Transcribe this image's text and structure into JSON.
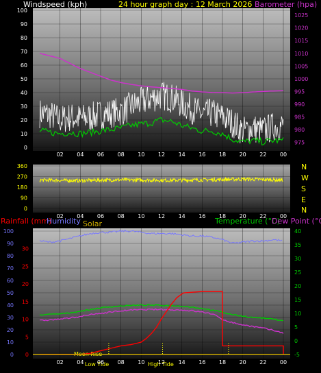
{
  "header": {
    "windspeed_label": "Windspeed (kph)",
    "title": "24 hour graph day : 12 March 2026",
    "barometer_label": "Barometer (hpa)"
  },
  "bottom_labels": {
    "rainfall": "Rainfall (mm)",
    "humidity": "Humidity",
    "solar": "Solar",
    "temperature": "Temperature (°C)",
    "dewpoint": "Dew Point (°C)"
  },
  "compass": [
    "N",
    "W",
    "S",
    "E",
    "N"
  ],
  "annotations": {
    "moon_rise": "Moon Rise",
    "low_tide": "Low Tide",
    "high_tide": "High Tide"
  },
  "colors": {
    "windspeed": "#ffffff",
    "wind_avg": "#00cc00",
    "barometer": "#cc33cc",
    "direction": "#ffff00",
    "rainfall": "#ff0000",
    "humidity": "#7777ff",
    "temperature": "#00cc00",
    "dewpoint": "#cc33cc",
    "solar": "#ccaa00"
  },
  "chart_data": [
    {
      "type": "line",
      "name": "wind-barometer",
      "x_ticks": [
        "02",
        "04",
        "06",
        "08",
        "10",
        "12",
        "14",
        "16",
        "18",
        "20",
        "22",
        "00"
      ],
      "y_left_ticks": [
        0,
        10,
        20,
        30,
        40,
        50,
        60,
        70,
        80,
        90,
        100
      ],
      "y_left_range": [
        0,
        100
      ],
      "y_right_ticks": [
        975,
        980,
        985,
        990,
        995,
        1000,
        1005,
        1010,
        1015,
        1020,
        1025
      ],
      "y_right_range": [
        973,
        1028
      ],
      "series": [
        {
          "key": "gust",
          "x": [
            0,
            1,
            2,
            3,
            4,
            5,
            6,
            7,
            8,
            9,
            10,
            11,
            12,
            13,
            14,
            15,
            16,
            17,
            18,
            19,
            20,
            21,
            22,
            23,
            24
          ],
          "y": [
            25,
            24,
            20,
            22,
            21,
            22,
            24,
            25,
            26,
            30,
            33,
            36,
            38,
            36,
            32,
            28,
            24,
            25,
            22,
            18,
            12,
            14,
            12,
            15,
            16
          ]
        },
        {
          "key": "average",
          "x": [
            0,
            1,
            2,
            3,
            4,
            5,
            6,
            7,
            8,
            9,
            10,
            11,
            12,
            13,
            14,
            15,
            16,
            17,
            18,
            19,
            20,
            21,
            22,
            23,
            24
          ],
          "y": [
            12,
            11,
            10,
            11,
            10,
            11,
            12,
            13,
            14,
            16,
            17,
            18,
            20,
            19,
            16,
            14,
            12,
            12,
            10,
            6,
            4,
            5,
            4,
            5,
            5
          ]
        },
        {
          "key": "barometer",
          "x": [
            0,
            1,
            2,
            3,
            4,
            5,
            6,
            7,
            8,
            9,
            10,
            11,
            12,
            13,
            14,
            15,
            16,
            17,
            18,
            19,
            20,
            21,
            22,
            23,
            24
          ],
          "y": [
            1010,
            1009,
            1008,
            1006,
            1004,
            1002.5,
            1001,
            999.5,
            998.5,
            997.8,
            997.2,
            996.8,
            996.5,
            996.2,
            995.8,
            995.2,
            994.8,
            994.6,
            994.5,
            994.4,
            994.5,
            994.8,
            995.0,
            995.2,
            995.3
          ]
        }
      ]
    },
    {
      "type": "line",
      "name": "wind-direction",
      "x_ticks": [
        "02",
        "04",
        "06",
        "08",
        "10",
        "12",
        "14",
        "16",
        "18",
        "20",
        "22",
        "00"
      ],
      "y_ticks": [
        0,
        90,
        180,
        270,
        360
      ],
      "y_range": [
        0,
        360
      ],
      "series": [
        {
          "key": "direction",
          "x": [
            0,
            2,
            4,
            6,
            8,
            10,
            12,
            14,
            16,
            18,
            20,
            22,
            24
          ],
          "y": [
            240,
            238,
            235,
            240,
            242,
            240,
            238,
            240,
            242,
            245,
            248,
            245,
            240
          ]
        }
      ]
    },
    {
      "type": "line",
      "name": "rain-temperature",
      "x_ticks": [
        "02",
        "04",
        "06",
        "08",
        "10",
        "12",
        "14",
        "16",
        "18",
        "20",
        "22",
        "00"
      ],
      "y_left_ticks": [
        0,
        10,
        20,
        30,
        40,
        50,
        60,
        70,
        80,
        90,
        100
      ],
      "y_left_range": [
        0,
        100
      ],
      "y_left2_ticks": [
        0,
        5,
        10,
        15,
        20,
        25,
        30
      ],
      "y_right_ticks": [
        -5,
        0,
        5,
        10,
        15,
        20,
        25,
        30,
        35,
        40
      ],
      "y_right_range": [
        -5,
        40
      ],
      "series": [
        {
          "key": "humidity",
          "x": [
            0,
            1,
            2,
            3,
            4,
            5,
            6,
            7,
            8,
            9,
            10,
            11,
            12,
            13,
            14,
            15,
            16,
            17,
            18,
            19,
            20,
            21,
            22,
            23,
            24
          ],
          "y": [
            92,
            91,
            92,
            94,
            96,
            98,
            99,
            99,
            100,
            100,
            99,
            98,
            98,
            98,
            97,
            96,
            96,
            95,
            93,
            90,
            91,
            92,
            92,
            93,
            92
          ]
        },
        {
          "key": "temperature",
          "x": [
            0,
            1,
            2,
            3,
            4,
            5,
            6,
            7,
            8,
            9,
            10,
            11,
            12,
            13,
            14,
            15,
            16,
            17,
            18,
            19,
            20,
            21,
            22,
            23,
            24
          ],
          "y": [
            9.5,
            9.6,
            9.8,
            10.2,
            10.8,
            11.4,
            12,
            12.4,
            12.7,
            12.9,
            13,
            13,
            12.9,
            12.8,
            12.6,
            12.3,
            11.8,
            11.2,
            10.4,
            9.5,
            9,
            8.5,
            8.3,
            7.9,
            7.4
          ]
        },
        {
          "key": "dewpoint",
          "x": [
            0,
            1,
            2,
            3,
            4,
            5,
            6,
            7,
            8,
            9,
            10,
            11,
            12,
            13,
            14,
            15,
            16,
            17,
            18,
            19,
            20,
            21,
            22,
            23,
            24
          ],
          "y": [
            7.4,
            7.6,
            7.9,
            8.3,
            8.9,
            9.5,
            10,
            10.5,
            10.9,
            11.2,
            11.3,
            11.4,
            11.4,
            11.3,
            11.2,
            10.9,
            10.5,
            9.8,
            7.8,
            6.6,
            5.8,
            5.2,
            4.6,
            3.8,
            2.9
          ]
        },
        {
          "key": "rainfall",
          "x": [
            0,
            4,
            5,
            6,
            7,
            8,
            9,
            10,
            10.5,
            11,
            11.5,
            12,
            12.5,
            13,
            13.5,
            14,
            14.2,
            16,
            18,
            18,
            22,
            24,
            24
          ],
          "y": [
            0,
            0,
            1,
            3,
            5,
            7,
            8,
            10,
            13,
            17,
            22,
            29,
            35,
            41,
            46,
            49,
            50,
            51,
            51,
            7,
            7,
            7,
            0
          ]
        }
      ],
      "events": [
        {
          "key": "moon_rise",
          "x": 6.8
        },
        {
          "key": "low_tide",
          "x": 6.8
        },
        {
          "key": "high_tide",
          "x": 12.1
        },
        {
          "key": "tide3",
          "x": 18.6
        }
      ]
    }
  ]
}
